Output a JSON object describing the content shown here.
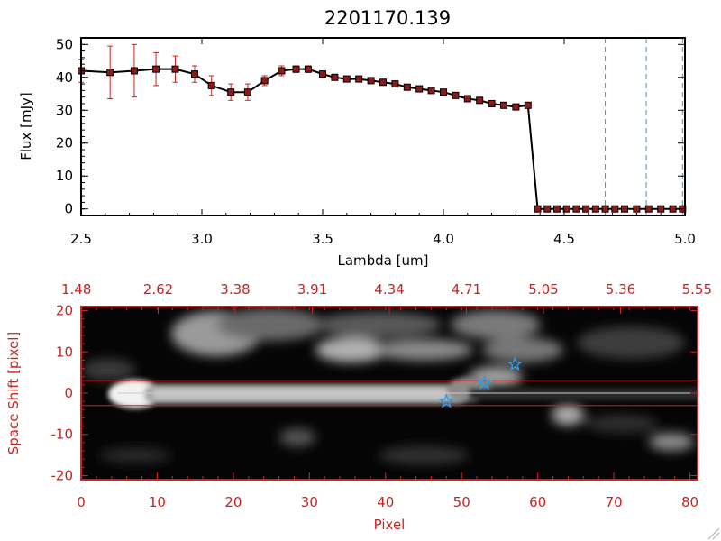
{
  "chart_data": [
    {
      "type": "line",
      "title": "2201170.139",
      "xlabel": "Lambda [um]",
      "ylabel": "Flux [mJy]",
      "xlim": [
        2.5,
        5.0
      ],
      "ylim": [
        -2,
        52
      ],
      "x_ticks": [
        "2.5",
        "3.0",
        "3.5",
        "4.0",
        "4.5",
        "5.0"
      ],
      "y_ticks": [
        "0",
        "10",
        "20",
        "30",
        "40",
        "50"
      ],
      "series": [
        {
          "name": "flux",
          "x": [
            2.5,
            2.62,
            2.72,
            2.81,
            2.89,
            2.97,
            3.04,
            3.12,
            3.19,
            3.26,
            3.33,
            3.39,
            3.44,
            3.5,
            3.55,
            3.6,
            3.65,
            3.7,
            3.75,
            3.8,
            3.85,
            3.9,
            3.95,
            4.0,
            4.05,
            4.1,
            4.15,
            4.2,
            4.25,
            4.3,
            4.35,
            4.39,
            4.43,
            4.47,
            4.51,
            4.55,
            4.59,
            4.63,
            4.67,
            4.71,
            4.75,
            4.8,
            4.85,
            4.9,
            4.95,
            4.99
          ],
          "values": [
            42,
            41.5,
            42,
            42.5,
            42.5,
            41,
            37.5,
            35.5,
            35.5,
            39,
            42,
            42.5,
            42.5,
            41,
            40,
            39.5,
            39.5,
            39,
            38.5,
            38,
            37,
            36.5,
            36,
            35.5,
            34.5,
            33.5,
            33,
            32,
            31.5,
            31,
            31.5,
            0,
            0,
            0,
            0,
            0,
            0,
            0,
            0,
            0,
            0,
            0,
            0,
            0,
            0,
            0
          ],
          "errors": [
            3.5,
            8,
            8,
            5,
            4,
            2.5,
            3,
            2.5,
            2.5,
            1.5,
            1.5,
            1,
            1,
            0.8,
            0.8,
            0.8,
            0.8,
            0.8,
            0.8,
            0.8,
            0.8,
            0.8,
            0.8,
            0.8,
            0.8,
            0.8,
            0.8,
            0.8,
            0.8,
            0.8,
            0.8,
            0,
            0,
            0,
            0,
            0,
            0,
            0,
            0,
            0,
            0,
            0,
            0,
            0,
            0,
            0
          ]
        }
      ],
      "vertical_lines": [
        4.67,
        4.84,
        4.99
      ],
      "colors": {
        "line": "#000000",
        "marker": "#8b1a1a",
        "error": "#cc2222",
        "vline": "#3399dd"
      }
    },
    {
      "type": "heatmap",
      "xlabel": "Pixel",
      "ylabel": "Space Shift [pixel]",
      "xlim": [
        0,
        81
      ],
      "ylim": [
        -21,
        21
      ],
      "x_ticks": [
        "0",
        "10",
        "20",
        "30",
        "40",
        "50",
        "60",
        "70",
        "80"
      ],
      "y_ticks": [
        "-20",
        "-10",
        "0",
        "10",
        "20"
      ],
      "top_axis_ticks": [
        "1.48",
        "2.62",
        "3.38",
        "3.91",
        "4.34",
        "4.71",
        "5.05",
        "5.36",
        "5.55"
      ],
      "red_lines": [
        3,
        -3
      ],
      "center_line": 0,
      "star_markers": [
        {
          "x": 48,
          "y": -2
        },
        {
          "x": 53,
          "y": 2.5
        },
        {
          "x": 57,
          "y": 7
        }
      ],
      "colors": {
        "axis": "#cc2222",
        "star": "#3399dd",
        "background": "#000000"
      }
    }
  ]
}
